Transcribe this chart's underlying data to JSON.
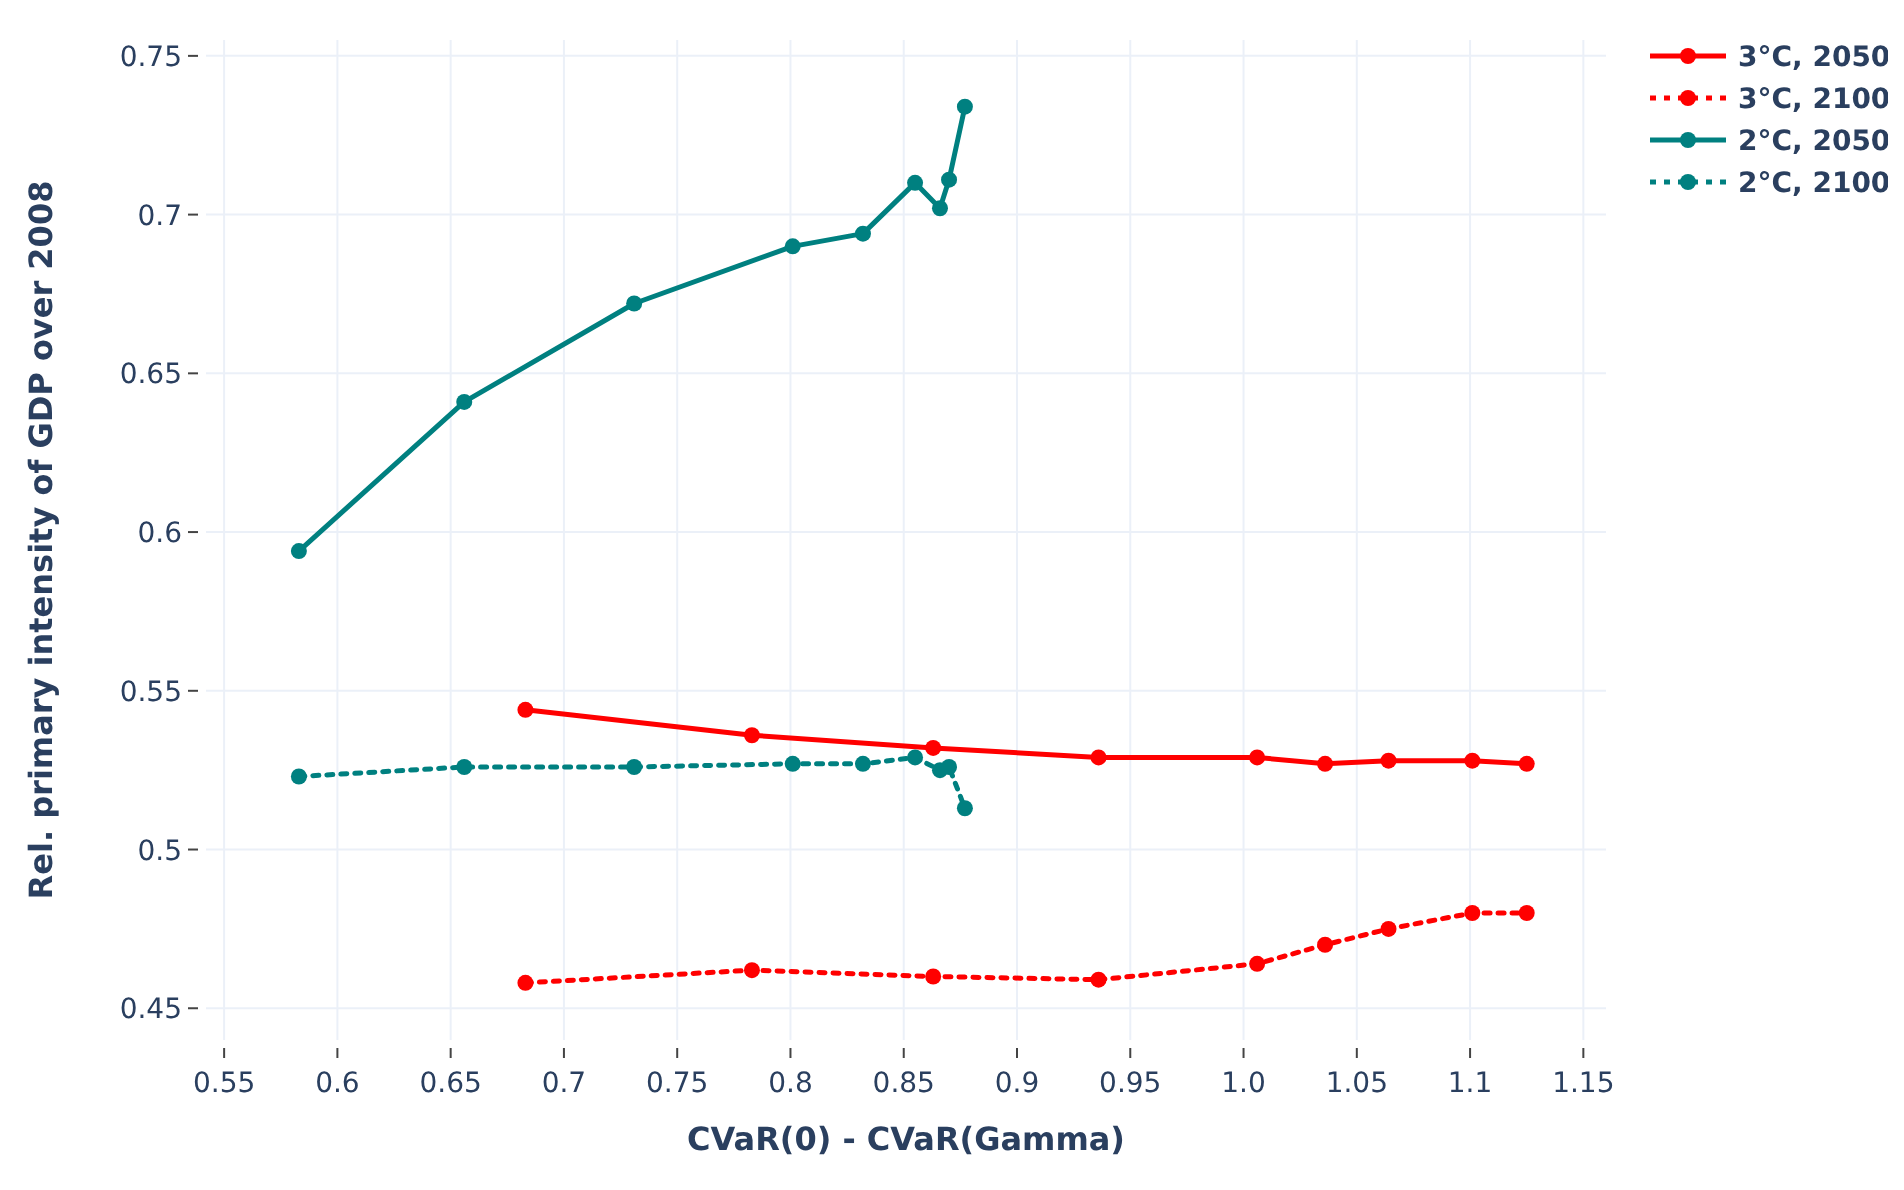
{
  "chart_data": {
    "type": "line",
    "xlabel": "CVaR(0) - CVaR(Gamma)",
    "ylabel": "Rel. primary intensity of GDP over 2008",
    "xlim": [
      0.542,
      1.16
    ],
    "xticks": [
      0.55,
      0.6,
      0.65,
      0.7,
      0.75,
      0.8,
      0.85,
      0.9,
      0.95,
      {
        "value": 1,
        "label": "1.0"
      },
      1.05,
      1.1,
      1.15
    ],
    "ylim": [
      0.44,
      0.755
    ],
    "yticks": [
      0.45,
      0.5,
      0.55,
      0.6,
      0.65,
      0.7,
      0.75
    ],
    "grid": true,
    "legend": "top right",
    "marker": "circle",
    "series": [
      {
        "name": "3°C, 2050",
        "color": "#ff0000",
        "line_style": "solid",
        "x": [
          0.683,
          0.783,
          0.863,
          0.936,
          1.006,
          1.036,
          1.064,
          1.101,
          1.125
        ],
        "values": [
          0.544,
          0.536,
          0.532,
          0.529,
          0.529,
          0.527,
          0.528,
          0.528,
          0.527
        ]
      },
      {
        "name": "3°C, 2100",
        "color": "#ff0000",
        "line_style": "dotted",
        "x": [
          0.683,
          0.783,
          0.863,
          0.936,
          1.006,
          1.036,
          1.064,
          1.101,
          1.125
        ],
        "values": [
          0.458,
          0.462,
          0.46,
          0.459,
          0.464,
          0.47,
          0.475,
          0.48,
          0.48
        ]
      },
      {
        "name": "2°C, 2050",
        "color": "#008080",
        "line_style": "solid",
        "x": [
          0.583,
          0.656,
          0.731,
          0.801,
          0.832,
          0.855,
          0.866,
          0.87,
          0.877
        ],
        "values": [
          0.594,
          0.641,
          0.672,
          0.69,
          0.694,
          0.71,
          0.702,
          0.711,
          0.734
        ]
      },
      {
        "name": "2°C, 2100",
        "color": "#008080",
        "line_style": "dotted",
        "x": [
          0.583,
          0.656,
          0.731,
          0.801,
          0.832,
          0.855,
          0.866,
          0.87,
          0.877
        ],
        "values": [
          0.523,
          0.526,
          0.526,
          0.527,
          0.527,
          0.529,
          0.525,
          0.526,
          0.513
        ]
      }
    ]
  }
}
